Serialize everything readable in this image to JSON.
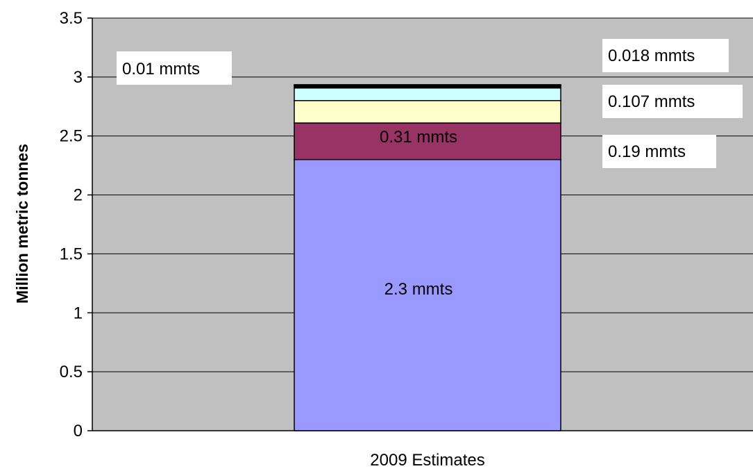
{
  "chart_data": {
    "type": "bar",
    "stacked": true,
    "categories": [
      "2009 Estimates"
    ],
    "series": [
      {
        "values": [
          2.3
        ],
        "color": "#9999ff",
        "label": "2.3 mmts"
      },
      {
        "values": [
          0.31
        ],
        "color": "#993366",
        "label": "0.31 mmts"
      },
      {
        "values": [
          0.19
        ],
        "color": "#ffffcc",
        "label": "0.19 mmts"
      },
      {
        "values": [
          0.107
        ],
        "color": "#ccffff",
        "label": "0.107 mmts"
      },
      {
        "values": [
          0.018
        ],
        "color": "#000000",
        "label": "0.018 mmts"
      },
      {
        "values": [
          0.01
        ],
        "color": "#000000",
        "label": "0.01 mmts"
      }
    ],
    "title": "",
    "xlabel": "",
    "ylabel": "Million metric tonnes",
    "ylim": [
      0,
      3.5
    ],
    "yticks": [
      0,
      0.5,
      1,
      1.5,
      2,
      2.5,
      3,
      3.5
    ],
    "ytick_labels": [
      "0",
      "0.5",
      "1",
      "1.5",
      "2",
      "2.5",
      "3",
      "3.5"
    ],
    "grid": true,
    "plot_background": "#c0c0c0"
  }
}
